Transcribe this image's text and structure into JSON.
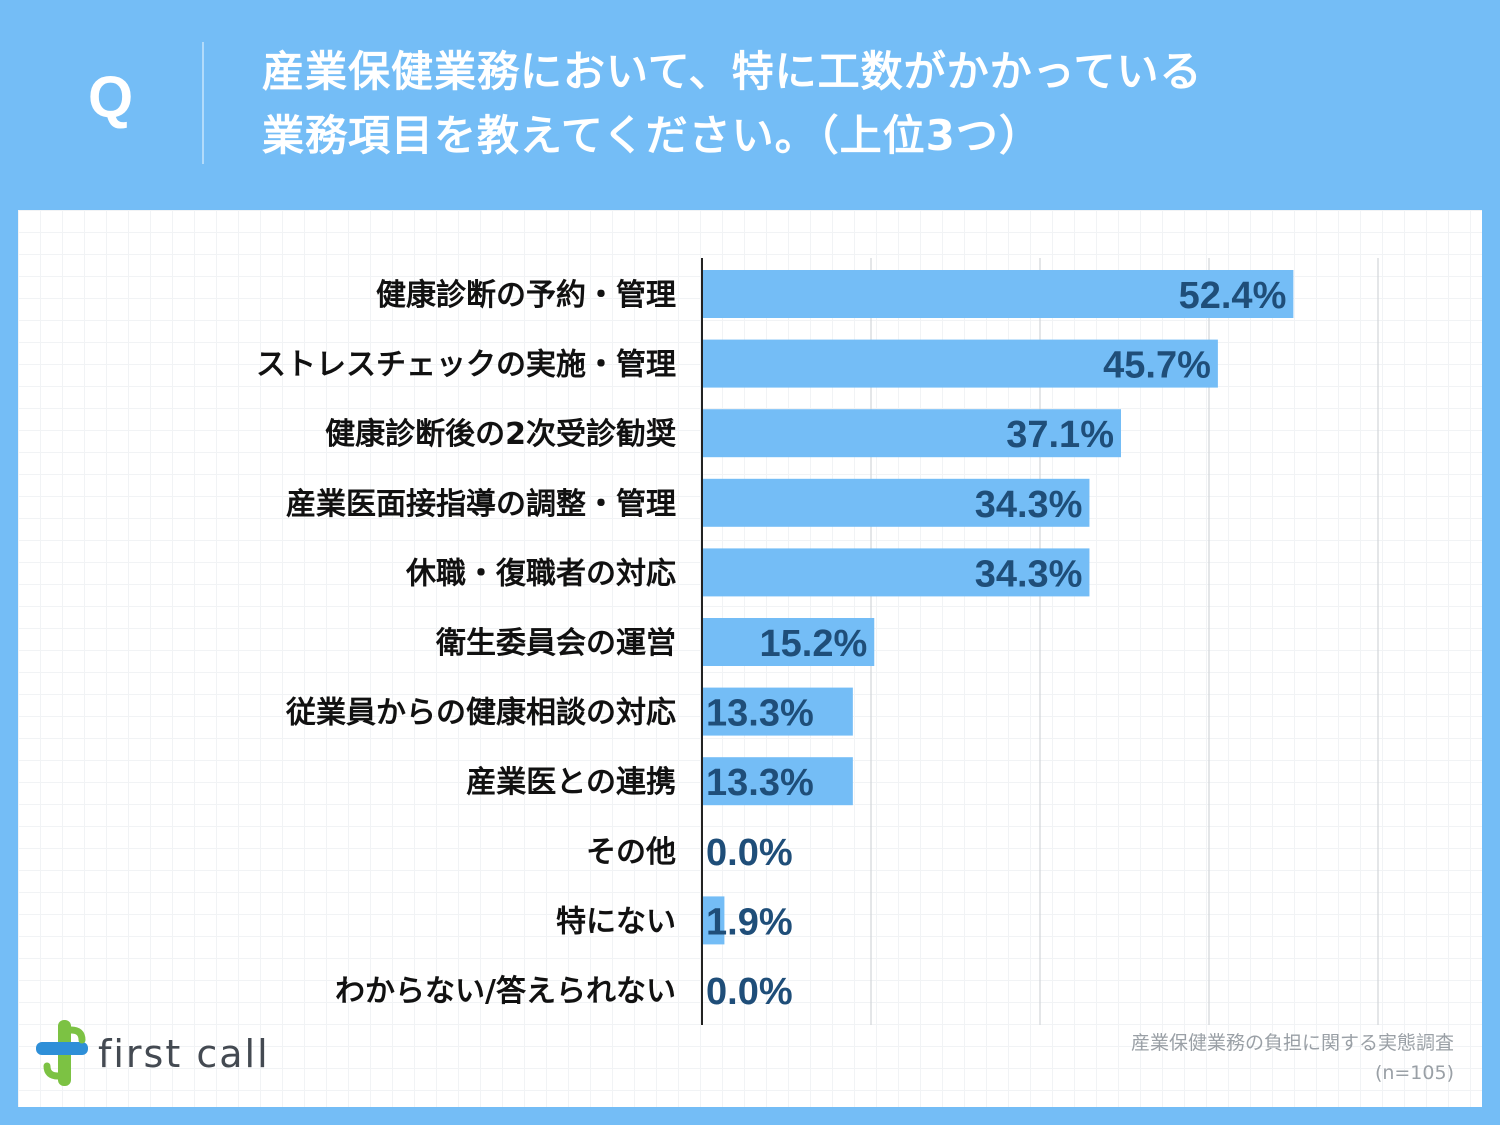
{
  "header": {
    "q_label": "Q",
    "question_line1": "産業保健業務において、特に工数がかかっている",
    "question_line2": "業務項目を教えてください。（上位3つ）"
  },
  "chart_data": {
    "type": "bar",
    "orientation": "horizontal",
    "categories": [
      "健康診断の予約・管理",
      "ストレスチェックの実施・管理",
      "健康診断後の2次受診勧奨",
      "産業医面接指導の調整・管理",
      "休職・復職者の対応",
      "衛生委員会の運営",
      "従業員からの健康相談の対応",
      "産業医との連携",
      "その他",
      "特にない",
      "わからない/答えられない"
    ],
    "values": [
      52.4,
      45.7,
      37.1,
      34.3,
      34.3,
      15.2,
      13.3,
      13.3,
      0.0,
      1.9,
      0.0
    ],
    "value_labels": [
      "52.4%",
      "45.7%",
      "37.1%",
      "34.3%",
      "34.3%",
      "15.2%",
      "13.3%",
      "13.3%",
      "0.0%",
      "1.9%",
      "0.0%"
    ],
    "xlim": [
      0,
      60
    ],
    "x_gridlines": [
      15,
      30,
      45,
      60
    ],
    "unit": "%",
    "bar_color": "#74bdf6",
    "label_color": "#1f4e79"
  },
  "source": {
    "line1": "産業保健業務の負担に関する実態調査",
    "line2": "(n=105)"
  },
  "logo": {
    "text": "first call"
  }
}
